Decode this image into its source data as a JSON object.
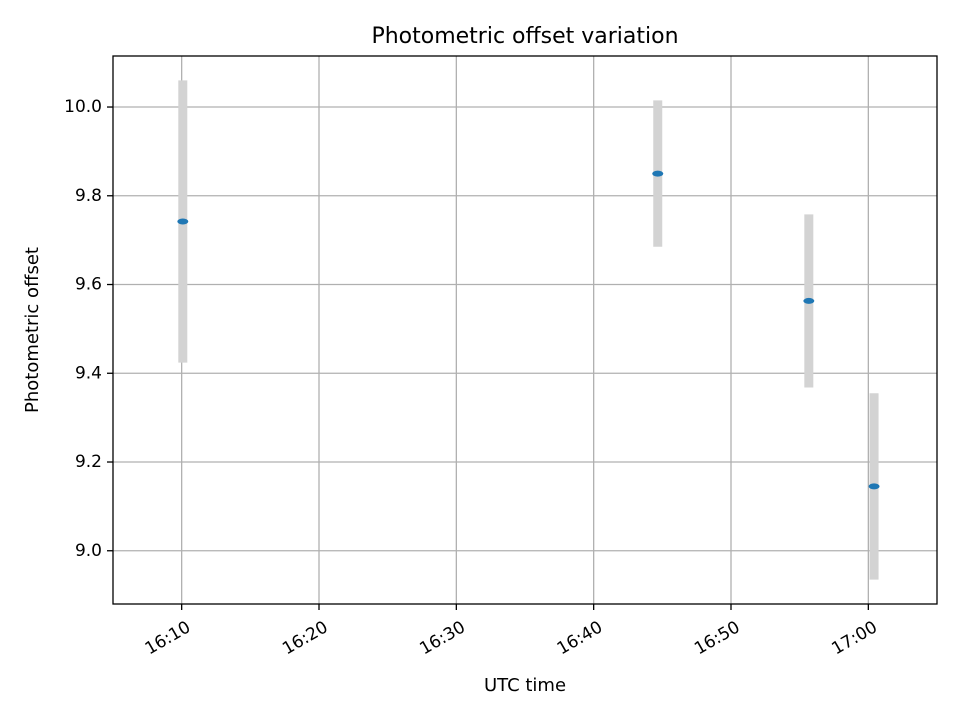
{
  "chart_data": {
    "type": "scatter",
    "title": "Photometric offset variation",
    "xlabel": "UTC time",
    "ylabel": "Photometric offset",
    "x_unit": "time of day (UTC)",
    "xlim": [
      "16:05:00",
      "17:05:00"
    ],
    "ylim": [
      8.88,
      10.115
    ],
    "grid": true,
    "x_ticks": [
      "16:10",
      "16:20",
      "16:30",
      "16:40",
      "16:50",
      "17:00"
    ],
    "y_ticks": [
      9.0,
      9.2,
      9.4,
      9.6,
      9.8,
      10.0
    ],
    "y_tick_labels": [
      "9.0",
      "9.2",
      "9.4",
      "9.6",
      "9.8",
      "10.0"
    ],
    "marker_color": "#1f77b4",
    "errorbar_color": "#d3d3d3",
    "series": [
      {
        "points": [
          {
            "x": "16:10:05",
            "y": 9.742,
            "yerr": 0.318
          },
          {
            "x": "16:44:40",
            "y": 9.85,
            "yerr": 0.165
          },
          {
            "x": "16:55:40",
            "y": 9.563,
            "yerr": 0.195
          },
          {
            "x": "17:00:25",
            "y": 9.145,
            "yerr": 0.21
          }
        ]
      }
    ]
  }
}
